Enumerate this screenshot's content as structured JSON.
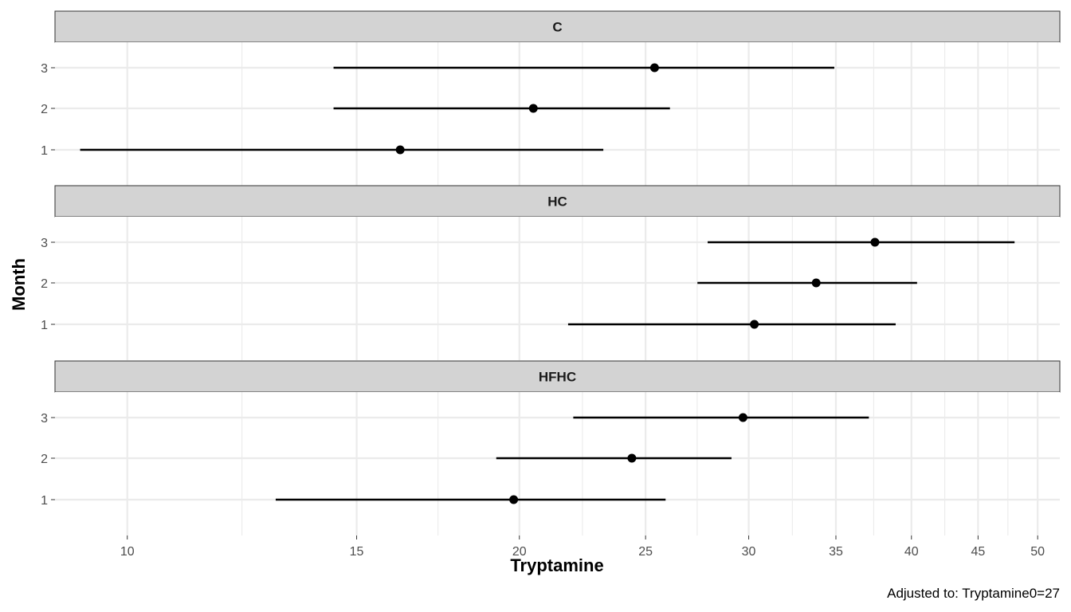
{
  "chart_data": {
    "type": "scatter",
    "subtype": "point-range-facets",
    "title": "",
    "xlabel": "Tryptamine",
    "ylabel": "Month",
    "caption": "Adjusted to: Tryptamine0=27",
    "x_scale": "log",
    "xlim": [
      8.8,
      52
    ],
    "x_ticks": [
      10,
      15,
      20,
      25,
      30,
      35,
      40,
      45,
      50
    ],
    "y_categories": [
      "1",
      "2",
      "3"
    ],
    "grid": true,
    "facets": [
      {
        "label": "C",
        "points": [
          {
            "month": "3",
            "estimate": 25.4,
            "lower": 14.4,
            "upper": 34.9
          },
          {
            "month": "2",
            "estimate": 20.5,
            "lower": 14.4,
            "upper": 26.1
          },
          {
            "month": "1",
            "estimate": 16.2,
            "lower": 9.2,
            "upper": 23.2
          }
        ]
      },
      {
        "label": "HC",
        "points": [
          {
            "month": "3",
            "estimate": 37.5,
            "lower": 27.9,
            "upper": 48.0
          },
          {
            "month": "2",
            "estimate": 33.8,
            "lower": 27.4,
            "upper": 40.4
          },
          {
            "month": "1",
            "estimate": 30.3,
            "lower": 21.8,
            "upper": 38.9
          }
        ]
      },
      {
        "label": "HFHC",
        "points": [
          {
            "month": "3",
            "estimate": 29.7,
            "lower": 22.0,
            "upper": 37.1
          },
          {
            "month": "2",
            "estimate": 24.4,
            "lower": 19.2,
            "upper": 29.1
          },
          {
            "month": "1",
            "estimate": 19.8,
            "lower": 13.0,
            "upper": 25.9
          }
        ]
      }
    ]
  }
}
